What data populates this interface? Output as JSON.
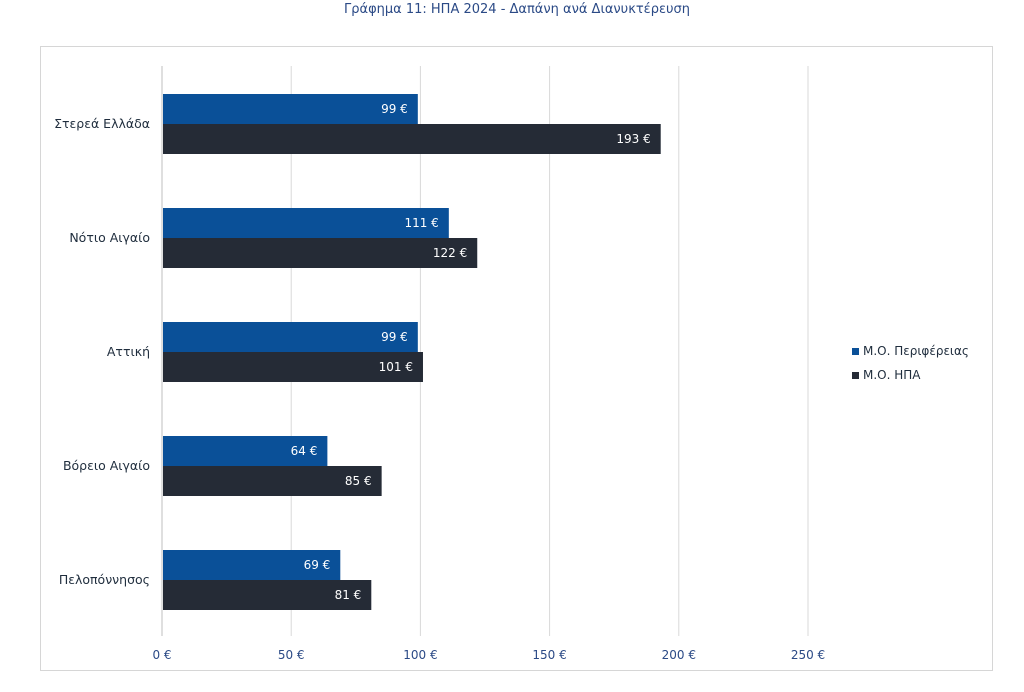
{
  "chart_data": {
    "type": "bar",
    "orientation": "horizontal",
    "title": "Γράφημα 11: ΗΠΑ 2024 - Δαπάνη ανά Διανυκτέρευση",
    "categories": [
      "Στερεά Ελλάδα",
      "Νότιο Αιγαίο",
      "Αττική",
      "Βόρειο Αιγαίο",
      "Πελοπόννησος"
    ],
    "series": [
      {
        "name": "Μ.Ο. Περιφέρειας",
        "values": [
          99,
          111,
          99,
          64,
          69
        ],
        "labels": [
          "99 €",
          "111 €",
          "99 €",
          "64 €",
          "69 €"
        ],
        "color": "#0a5098"
      },
      {
        "name": "Μ.Ο. ΗΠΑ",
        "values": [
          193,
          122,
          101,
          85,
          81
        ],
        "labels": [
          "193 €",
          "122 €",
          "101 €",
          "85 €",
          "81 €"
        ],
        "color": "#252b36"
      }
    ],
    "xlim": [
      0,
      250
    ],
    "xticks": [
      0,
      50,
      100,
      150,
      200,
      250
    ],
    "xtick_labels": [
      "0 €",
      "50 €",
      "100 €",
      "150 €",
      "200 €",
      "250 €"
    ],
    "grid": true,
    "legend_position": "right"
  }
}
